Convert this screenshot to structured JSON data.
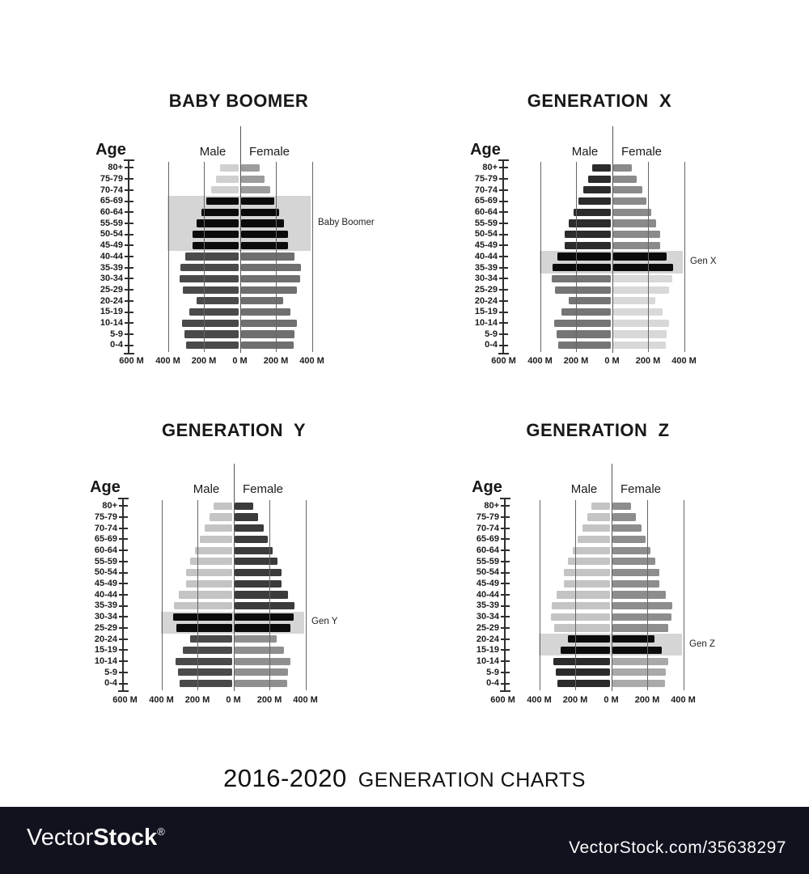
{
  "axis": {
    "age_label": "Age",
    "male_label": "Male",
    "female_label": "Female",
    "x_tick_labels": [
      "600 M",
      "400 M",
      "200 M",
      "0 M",
      "200 M",
      "400 M"
    ]
  },
  "chart_data": {
    "type": "bar",
    "subtype": "population-pyramid",
    "unit": "millions of people",
    "grid": true,
    "categories": [
      "80+",
      "75-79",
      "70-74",
      "65-69",
      "60-64",
      "55-59",
      "50-54",
      "45-49",
      "40-44",
      "35-39",
      "30-34",
      "25-29",
      "20-24",
      "15-19",
      "10-14",
      "5-9",
      "0-4"
    ],
    "series": [
      {
        "name": "Male",
        "values": [
          105,
          125,
          155,
          180,
          205,
          235,
          258,
          258,
          297,
          325,
          328,
          308,
          235,
          273,
          315,
          300,
          292
        ]
      },
      {
        "name": "Female",
        "values": [
          105,
          130,
          160,
          185,
          210,
          240,
          262,
          260,
          295,
          332,
          328,
          308,
          232,
          272,
          312,
          295,
          290
        ]
      }
    ],
    "x_axis": {
      "tick_labels": [
        "600 M",
        "400 M",
        "200 M",
        "0 M",
        "200 M",
        "400 M"
      ],
      "tick_step_millions": 200
    },
    "pyramids": [
      {
        "title": "BABY BOOMER",
        "highlight_label": "Baby Boomer",
        "highlight_age_range": "65-69 to 45-49",
        "highlight_rows": [
          3,
          7
        ],
        "colors": {
          "male_above": "#d0d0d0",
          "female_above": "#9c9c9c",
          "highlight": "#0b0b0b",
          "male_below": "#4a4a4a",
          "female_below": "#6f6f6f",
          "band": "#d5d5d5"
        }
      },
      {
        "title": "GENERATION  X",
        "highlight_label": "Gen X",
        "highlight_age_range": "40-44 to 35-39",
        "highlight_rows": [
          8,
          9
        ],
        "colors": {
          "male_above": "#2c2c2c",
          "female_above": "#8a8a8a",
          "highlight": "#0b0b0b",
          "male_below": "#757575",
          "female_below": "#d8d8d8",
          "band": "#d5d5d5"
        }
      },
      {
        "title": "GENERATION  Y",
        "highlight_label": "Gen Y",
        "highlight_age_range": "30-34 to 25-29",
        "highlight_rows": [
          10,
          11
        ],
        "colors": {
          "male_above": "#c4c4c4",
          "female_above": "#3b3b3b",
          "highlight": "#0b0b0b",
          "male_below": "#4a4a4a",
          "female_below": "#8f8f8f",
          "band": "#d5d5d5"
        }
      },
      {
        "title": "GENERATION  Z",
        "highlight_label": "Gen Z",
        "highlight_age_range": "20-24 to 15-19",
        "highlight_rows": [
          12,
          13
        ],
        "colors": {
          "male_above": "#c4c4c4",
          "female_above": "#8d8d8d",
          "highlight": "#0b0b0b",
          "male_below": "#2b2b2b",
          "female_below": "#a9a9a9",
          "band": "#d5d5d5"
        }
      }
    ]
  },
  "footer": {
    "title_years": "2016-2020",
    "title_rest": "GENERATION CHARTS"
  },
  "watermark": {
    "bar_color": "#12121f",
    "logo_thin": "Vector",
    "logo_bold": "Stock",
    "registered": "®",
    "site_ref": "VectorStock.com/35638297"
  }
}
